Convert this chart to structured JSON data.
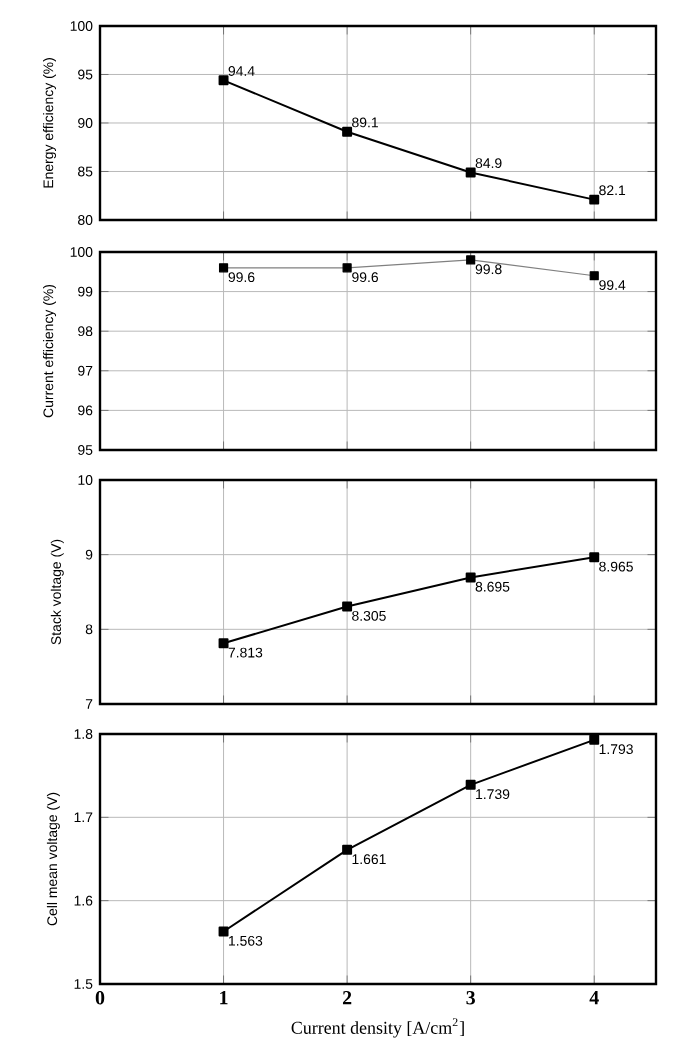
{
  "chart_data": [
    {
      "type": "line",
      "ylabel": "Energy efficiency (%)",
      "x": [
        1,
        2,
        3,
        4
      ],
      "xlim": [
        0,
        4.5
      ],
      "xticks": [
        0,
        1,
        2,
        3,
        4
      ],
      "ylim": [
        80,
        100
      ],
      "yticks": [
        80,
        85,
        90,
        95,
        100
      ],
      "grid": true,
      "marker": "square",
      "line_style": "solid",
      "data_labels": true,
      "tick_labels": "y",
      "series": [
        {
          "color": "#000000",
          "values": [
            94.4,
            89.1,
            84.9,
            82.1
          ]
        }
      ]
    },
    {
      "type": "line",
      "ylabel": "Current efficiency (%)",
      "x": [
        1,
        2,
        3,
        4
      ],
      "xlim": [
        0,
        4.5
      ],
      "xticks": [
        0,
        1,
        2,
        3,
        4
      ],
      "ylim": [
        95,
        100
      ],
      "yticks": [
        95,
        96,
        97,
        98,
        99,
        100
      ],
      "grid": true,
      "marker": "square",
      "line_style": "solid",
      "data_labels": true,
      "tick_labels": "y",
      "series": [
        {
          "color": "#808080",
          "values": [
            99.6,
            99.6,
            99.8,
            99.4
          ]
        }
      ]
    },
    {
      "type": "line",
      "ylabel": "Stack voltage (V)",
      "x": [
        1,
        2,
        3,
        4
      ],
      "xlim": [
        0,
        4.5
      ],
      "xticks": [
        0,
        1,
        2,
        3,
        4
      ],
      "ylim": [
        7,
        10
      ],
      "yticks": [
        7,
        8,
        9,
        10
      ],
      "grid": true,
      "marker": "square",
      "line_style": "solid",
      "data_labels": true,
      "tick_labels": "y",
      "series": [
        {
          "color": "#000000",
          "values": [
            7.813,
            8.305,
            8.695,
            8.965
          ]
        }
      ]
    },
    {
      "type": "line",
      "ylabel": "Cell mean voltage (V)",
      "xlabel": "Current density [A/cm$^{2}$]",
      "x": [
        1,
        2,
        3,
        4
      ],
      "xlim": [
        0,
        4.5
      ],
      "xticks": [
        0,
        1,
        2,
        3,
        4
      ],
      "ylim": [
        1.5,
        1.8
      ],
      "yticks": [
        1.5,
        1.6,
        1.7,
        1.8
      ],
      "grid": true,
      "marker": "square",
      "line_style": "solid",
      "data_labels": true,
      "series": [
        {
          "color": "#000000",
          "values": [
            1.563,
            1.661,
            1.739,
            1.793
          ]
        }
      ]
    }
  ]
}
